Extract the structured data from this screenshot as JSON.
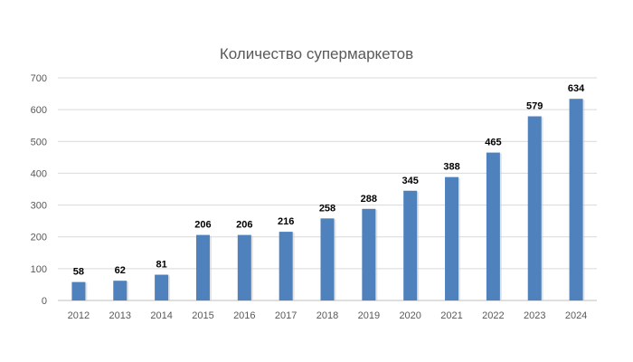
{
  "chart_data": {
    "type": "bar",
    "title": "Количество супермаркетов",
    "xlabel": "",
    "ylabel": "",
    "categories": [
      "2012",
      "2013",
      "2014",
      "2015",
      "2016",
      "2017",
      "2018",
      "2019",
      "2020",
      "2021",
      "2022",
      "2023",
      "2024"
    ],
    "values": [
      58,
      62,
      81,
      206,
      206,
      216,
      258,
      288,
      345,
      388,
      465,
      579,
      634
    ],
    "ylim": [
      0,
      700
    ],
    "yticks": [
      0,
      100,
      200,
      300,
      400,
      500,
      600,
      700
    ],
    "grid": true,
    "legend": "none",
    "data_labels": true,
    "colors": {
      "bar": "#4f81bd",
      "bar_shade": "#3c6696",
      "grid": "#d9d9d9",
      "text": "#595959"
    }
  }
}
